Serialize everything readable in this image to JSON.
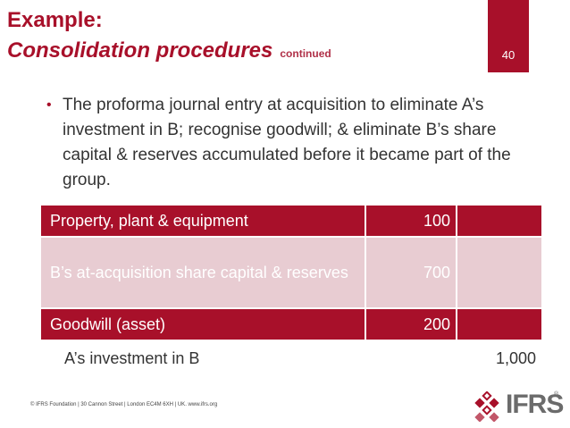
{
  "slide": {
    "title": "Example:",
    "subtitle": "Consolidation procedures",
    "subtitle_suffix": "continued",
    "page_number": "40"
  },
  "bullet": {
    "text": "The proforma journal entry at acquisition to eliminate A’s investment in B; recognise goodwill; & eliminate B’s share capital & reserves accumulated before it became part of the group."
  },
  "journal": {
    "rows": [
      {
        "account": "Property, plant & equipment",
        "debit": "100",
        "credit": ""
      },
      {
        "account": "B’s at-acquisition share capital & reserves",
        "debit": "700",
        "credit": ""
      },
      {
        "account": "Goodwill (asset)",
        "debit": "200",
        "credit": ""
      },
      {
        "account": "A’s investment in B",
        "debit": "",
        "credit": "1,000"
      }
    ]
  },
  "footer": {
    "text": "© IFRS Foundation  |  30 Cannon Street  |  London EC4M 6XH  |  UK.  www.ifrs.org"
  },
  "logo": {
    "icon": "ifrs-lattice-icon",
    "wordmark": "IFRS",
    "trademark": "®"
  },
  "colors": {
    "brand": "#a8102a",
    "row_light": "#e8ccd2"
  }
}
